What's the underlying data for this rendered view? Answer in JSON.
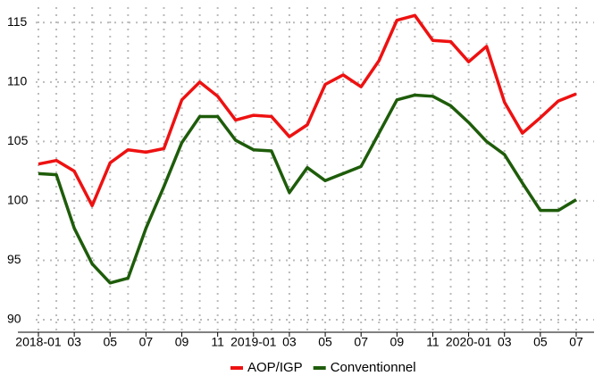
{
  "chart_data": {
    "type": "line",
    "categories": [
      "2018-01",
      null,
      "03",
      null,
      "05",
      null,
      "07",
      null,
      "09",
      null,
      "11",
      null,
      "2019-01",
      null,
      "03",
      null,
      "05",
      null,
      "07",
      null,
      "09",
      null,
      "11",
      null,
      "2020-01",
      null,
      "03",
      null,
      "05",
      null,
      "07"
    ],
    "series": [
      {
        "name": "AOP/IGP",
        "color": "#ee1111",
        "values": [
          103.1,
          103.4,
          102.5,
          99.6,
          103.2,
          104.3,
          104.1,
          104.4,
          108.5,
          110.0,
          108.8,
          106.8,
          107.2,
          107.1,
          105.4,
          106.4,
          109.8,
          110.6,
          109.6,
          111.8,
          115.2,
          115.6,
          113.5,
          113.4,
          111.7,
          113.0,
          108.3,
          105.7,
          107.0,
          108.4,
          109.0
        ]
      },
      {
        "name": "Conventionnel",
        "color": "#1e5c0a",
        "values": [
          102.3,
          102.2,
          97.7,
          94.7,
          93.1,
          93.5,
          97.7,
          101.2,
          104.9,
          107.1,
          107.1,
          105.1,
          104.3,
          104.2,
          100.7,
          102.8,
          101.7,
          102.3,
          102.9,
          105.7,
          108.5,
          108.9,
          108.8,
          108.0,
          106.6,
          105.0,
          103.9,
          101.5,
          99.2,
          99.2,
          100.1
        ]
      }
    ],
    "ylim": [
      89.1,
      116.3
    ],
    "yticks": [
      90,
      95,
      100,
      105,
      110,
      115
    ],
    "grid": true,
    "legend": "bottom"
  }
}
